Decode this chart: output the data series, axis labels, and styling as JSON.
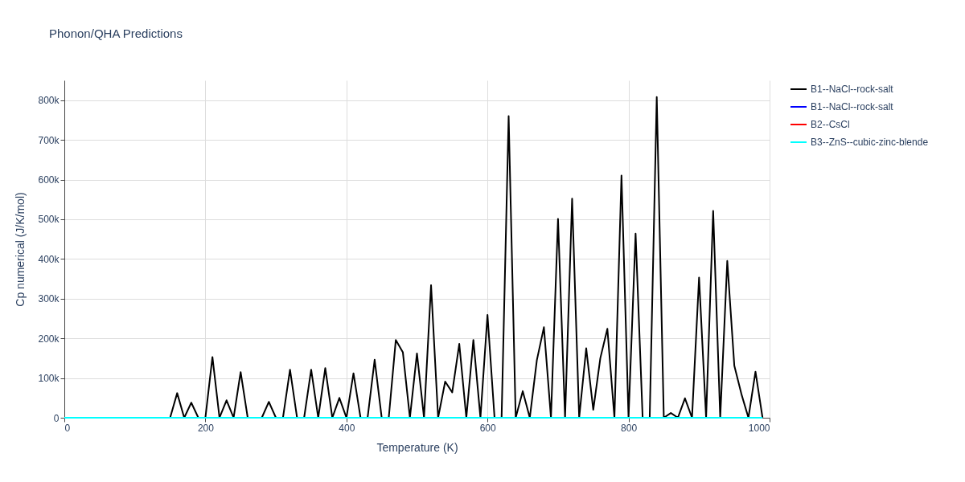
{
  "chart_data": {
    "type": "line",
    "title": "Phonon/QHA Predictions",
    "xlabel": "Temperature (K)",
    "ylabel": "Cp numerical (J/K/mol)",
    "x": [
      0,
      10,
      20,
      30,
      40,
      50,
      60,
      70,
      80,
      90,
      100,
      110,
      120,
      130,
      140,
      150,
      160,
      170,
      180,
      190,
      200,
      210,
      220,
      230,
      240,
      250,
      260,
      270,
      280,
      290,
      300,
      310,
      320,
      330,
      340,
      350,
      360,
      370,
      380,
      390,
      400,
      410,
      420,
      430,
      440,
      450,
      460,
      470,
      480,
      490,
      500,
      510,
      520,
      530,
      540,
      550,
      560,
      570,
      580,
      590,
      600,
      610,
      620,
      630,
      640,
      650,
      660,
      670,
      680,
      690,
      700,
      710,
      720,
      730,
      740,
      750,
      760,
      770,
      780,
      790,
      800,
      810,
      820,
      830,
      840,
      850,
      860,
      870,
      880,
      890,
      900,
      910,
      920,
      930,
      940,
      950,
      960,
      970,
      980,
      990
    ],
    "series": [
      {
        "name": "B1--NaCl--rock-salt",
        "color": "#000000",
        "values": [
          0,
          0,
          0,
          0,
          0,
          0,
          0,
          0,
          0,
          0,
          0,
          0,
          0,
          0,
          0,
          0,
          62000,
          0,
          38000,
          0,
          0,
          153000,
          0,
          44000,
          0,
          115000,
          0,
          0,
          0,
          40000,
          0,
          0,
          121000,
          0,
          0,
          121000,
          0,
          125000,
          0,
          50000,
          0,
          112000,
          0,
          0,
          146000,
          0,
          0,
          196000,
          165000,
          0,
          162000,
          0,
          334000,
          0,
          91000,
          64000,
          186000,
          0,
          196000,
          0,
          259000,
          0,
          0,
          760000,
          0,
          67000,
          0,
          145000,
          228000,
          0,
          501000,
          0,
          552000,
          0,
          175000,
          20000,
          150000,
          224000,
          0,
          610000,
          0,
          464000,
          0,
          0,
          808000,
          0,
          12000,
          0,
          49000,
          0,
          353000,
          0,
          521000,
          0,
          395000,
          131000,
          60000,
          0,
          116000,
          0
        ]
      },
      {
        "name": "B1--NaCl--rock-salt",
        "color": "#0000ff",
        "values": [
          null,
          null,
          null,
          null,
          null,
          null,
          null,
          null,
          null,
          null,
          null,
          null,
          null,
          null,
          null,
          null,
          null,
          null,
          null,
          null,
          null,
          null,
          null,
          null,
          null,
          null,
          null,
          null,
          null,
          null,
          null,
          null,
          null,
          null,
          null,
          null,
          null,
          null,
          null,
          null,
          null,
          null,
          null,
          null,
          null,
          null,
          null,
          null,
          null,
          null,
          null,
          null,
          null,
          null,
          null,
          null,
          null,
          null,
          null,
          null,
          null,
          null,
          null,
          null,
          null,
          null,
          null,
          null,
          null,
          null,
          null,
          null,
          null,
          null,
          null,
          null,
          null,
          null,
          null,
          null,
          null,
          null,
          null,
          null,
          null,
          null,
          null,
          null,
          null,
          null,
          null,
          null,
          null,
          null,
          null,
          null,
          null,
          null,
          null,
          null
        ]
      },
      {
        "name": "B2--CsCl",
        "color": "#ff0000",
        "values": [
          null,
          null,
          null,
          null,
          null,
          null,
          null,
          null,
          null,
          null,
          null,
          null,
          null,
          null,
          null,
          null,
          null,
          null,
          null,
          null,
          null,
          null,
          null,
          null,
          null,
          null,
          null,
          null,
          null,
          null,
          null,
          null,
          null,
          null,
          null,
          null,
          null,
          null,
          null,
          null,
          null,
          null,
          null,
          null,
          null,
          null,
          null,
          null,
          null,
          null,
          null,
          null,
          null,
          null,
          null,
          null,
          null,
          null,
          null,
          null,
          null,
          null,
          null,
          null,
          null,
          null,
          null,
          null,
          null,
          null,
          null,
          null,
          null,
          null,
          null,
          null,
          null,
          null,
          null,
          null,
          null,
          null,
          null,
          null,
          null,
          null,
          null,
          null,
          null,
          null,
          null,
          null,
          null,
          null,
          null,
          null,
          null,
          null,
          null,
          null
        ]
      },
      {
        "name": "B3--ZnS--cubic-zinc-blende",
        "color": "#00ffff",
        "values": [
          0,
          0,
          0,
          0,
          0,
          0,
          0,
          0,
          0,
          0,
          0,
          0,
          0,
          0,
          0,
          0,
          0,
          0,
          0,
          0,
          0,
          0,
          0,
          0,
          0,
          0,
          0,
          0,
          0,
          0,
          0,
          0,
          0,
          0,
          0,
          0,
          0,
          0,
          0,
          0,
          0,
          0,
          0,
          0,
          0,
          0,
          0,
          0,
          0,
          0,
          0,
          0,
          0,
          0,
          0,
          0,
          0,
          0,
          0,
          0,
          0,
          0,
          0,
          0,
          0,
          0,
          0,
          0,
          0,
          0,
          0,
          0,
          0,
          0,
          0,
          0,
          0,
          0,
          0,
          0,
          0,
          0,
          0,
          0,
          0,
          0,
          0,
          0,
          0,
          0,
          0,
          0,
          0,
          0,
          0,
          0,
          0,
          0,
          0,
          0
        ]
      }
    ],
    "xlim": [
      0,
      1000
    ],
    "xticks": [
      0,
      200,
      400,
      600,
      800,
      1000
    ],
    "ylim": [
      0,
      850000
    ],
    "yticks": [
      0,
      {
        "value": 100000,
        "label": "100k"
      },
      {
        "value": 200000,
        "label": "200k"
      },
      {
        "value": 300000,
        "label": "300k"
      },
      {
        "value": 400000,
        "label": "400k"
      },
      {
        "value": 500000,
        "label": "500k"
      },
      {
        "value": 600000,
        "label": "600k"
      },
      {
        "value": 700000,
        "label": "700k"
      },
      {
        "value": 800000,
        "label": "800k"
      }
    ],
    "grid": true,
    "legend": "top right"
  }
}
